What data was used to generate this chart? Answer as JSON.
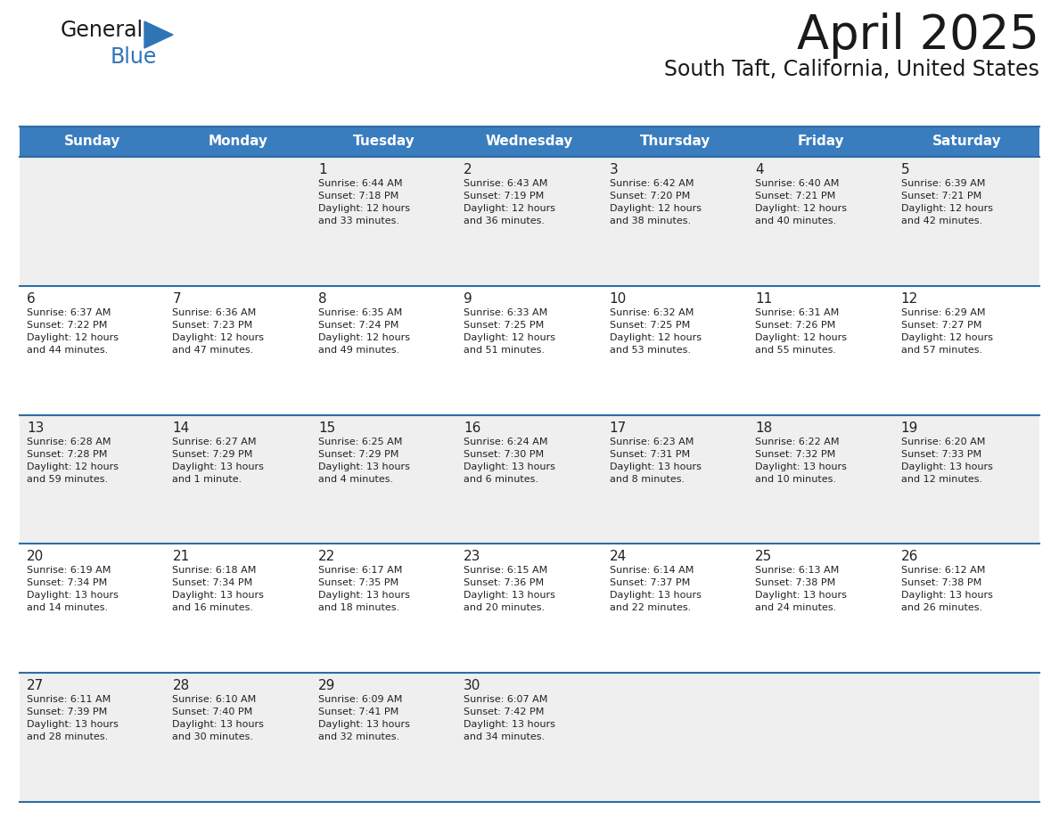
{
  "title": "April 2025",
  "subtitle": "South Taft, California, United States",
  "days_of_week": [
    "Sunday",
    "Monday",
    "Tuesday",
    "Wednesday",
    "Thursday",
    "Friday",
    "Saturday"
  ],
  "header_bg": "#3a7dbf",
  "header_text": "#ffffff",
  "row_bg_odd": "#efefef",
  "row_bg_even": "#ffffff",
  "cell_text": "#222222",
  "divider_color": "#2e6da4",
  "logo_general_color": "#1a1a1a",
  "logo_blue_color": "#2e75b6",
  "logo_triangle_color": "#2e75b6",
  "title_color": "#1a1a1a",
  "subtitle_color": "#1a1a1a",
  "calendar_data": [
    [
      {
        "day": "",
        "info": ""
      },
      {
        "day": "",
        "info": ""
      },
      {
        "day": "1",
        "info": "Sunrise: 6:44 AM\nSunset: 7:18 PM\nDaylight: 12 hours\nand 33 minutes."
      },
      {
        "day": "2",
        "info": "Sunrise: 6:43 AM\nSunset: 7:19 PM\nDaylight: 12 hours\nand 36 minutes."
      },
      {
        "day": "3",
        "info": "Sunrise: 6:42 AM\nSunset: 7:20 PM\nDaylight: 12 hours\nand 38 minutes."
      },
      {
        "day": "4",
        "info": "Sunrise: 6:40 AM\nSunset: 7:21 PM\nDaylight: 12 hours\nand 40 minutes."
      },
      {
        "day": "5",
        "info": "Sunrise: 6:39 AM\nSunset: 7:21 PM\nDaylight: 12 hours\nand 42 minutes."
      }
    ],
    [
      {
        "day": "6",
        "info": "Sunrise: 6:37 AM\nSunset: 7:22 PM\nDaylight: 12 hours\nand 44 minutes."
      },
      {
        "day": "7",
        "info": "Sunrise: 6:36 AM\nSunset: 7:23 PM\nDaylight: 12 hours\nand 47 minutes."
      },
      {
        "day": "8",
        "info": "Sunrise: 6:35 AM\nSunset: 7:24 PM\nDaylight: 12 hours\nand 49 minutes."
      },
      {
        "day": "9",
        "info": "Sunrise: 6:33 AM\nSunset: 7:25 PM\nDaylight: 12 hours\nand 51 minutes."
      },
      {
        "day": "10",
        "info": "Sunrise: 6:32 AM\nSunset: 7:25 PM\nDaylight: 12 hours\nand 53 minutes."
      },
      {
        "day": "11",
        "info": "Sunrise: 6:31 AM\nSunset: 7:26 PM\nDaylight: 12 hours\nand 55 minutes."
      },
      {
        "day": "12",
        "info": "Sunrise: 6:29 AM\nSunset: 7:27 PM\nDaylight: 12 hours\nand 57 minutes."
      }
    ],
    [
      {
        "day": "13",
        "info": "Sunrise: 6:28 AM\nSunset: 7:28 PM\nDaylight: 12 hours\nand 59 minutes."
      },
      {
        "day": "14",
        "info": "Sunrise: 6:27 AM\nSunset: 7:29 PM\nDaylight: 13 hours\nand 1 minute."
      },
      {
        "day": "15",
        "info": "Sunrise: 6:25 AM\nSunset: 7:29 PM\nDaylight: 13 hours\nand 4 minutes."
      },
      {
        "day": "16",
        "info": "Sunrise: 6:24 AM\nSunset: 7:30 PM\nDaylight: 13 hours\nand 6 minutes."
      },
      {
        "day": "17",
        "info": "Sunrise: 6:23 AM\nSunset: 7:31 PM\nDaylight: 13 hours\nand 8 minutes."
      },
      {
        "day": "18",
        "info": "Sunrise: 6:22 AM\nSunset: 7:32 PM\nDaylight: 13 hours\nand 10 minutes."
      },
      {
        "day": "19",
        "info": "Sunrise: 6:20 AM\nSunset: 7:33 PM\nDaylight: 13 hours\nand 12 minutes."
      }
    ],
    [
      {
        "day": "20",
        "info": "Sunrise: 6:19 AM\nSunset: 7:34 PM\nDaylight: 13 hours\nand 14 minutes."
      },
      {
        "day": "21",
        "info": "Sunrise: 6:18 AM\nSunset: 7:34 PM\nDaylight: 13 hours\nand 16 minutes."
      },
      {
        "day": "22",
        "info": "Sunrise: 6:17 AM\nSunset: 7:35 PM\nDaylight: 13 hours\nand 18 minutes."
      },
      {
        "day": "23",
        "info": "Sunrise: 6:15 AM\nSunset: 7:36 PM\nDaylight: 13 hours\nand 20 minutes."
      },
      {
        "day": "24",
        "info": "Sunrise: 6:14 AM\nSunset: 7:37 PM\nDaylight: 13 hours\nand 22 minutes."
      },
      {
        "day": "25",
        "info": "Sunrise: 6:13 AM\nSunset: 7:38 PM\nDaylight: 13 hours\nand 24 minutes."
      },
      {
        "day": "26",
        "info": "Sunrise: 6:12 AM\nSunset: 7:38 PM\nDaylight: 13 hours\nand 26 minutes."
      }
    ],
    [
      {
        "day": "27",
        "info": "Sunrise: 6:11 AM\nSunset: 7:39 PM\nDaylight: 13 hours\nand 28 minutes."
      },
      {
        "day": "28",
        "info": "Sunrise: 6:10 AM\nSunset: 7:40 PM\nDaylight: 13 hours\nand 30 minutes."
      },
      {
        "day": "29",
        "info": "Sunrise: 6:09 AM\nSunset: 7:41 PM\nDaylight: 13 hours\nand 32 minutes."
      },
      {
        "day": "30",
        "info": "Sunrise: 6:07 AM\nSunset: 7:42 PM\nDaylight: 13 hours\nand 34 minutes."
      },
      {
        "day": "",
        "info": ""
      },
      {
        "day": "",
        "info": ""
      },
      {
        "day": "",
        "info": ""
      }
    ]
  ]
}
